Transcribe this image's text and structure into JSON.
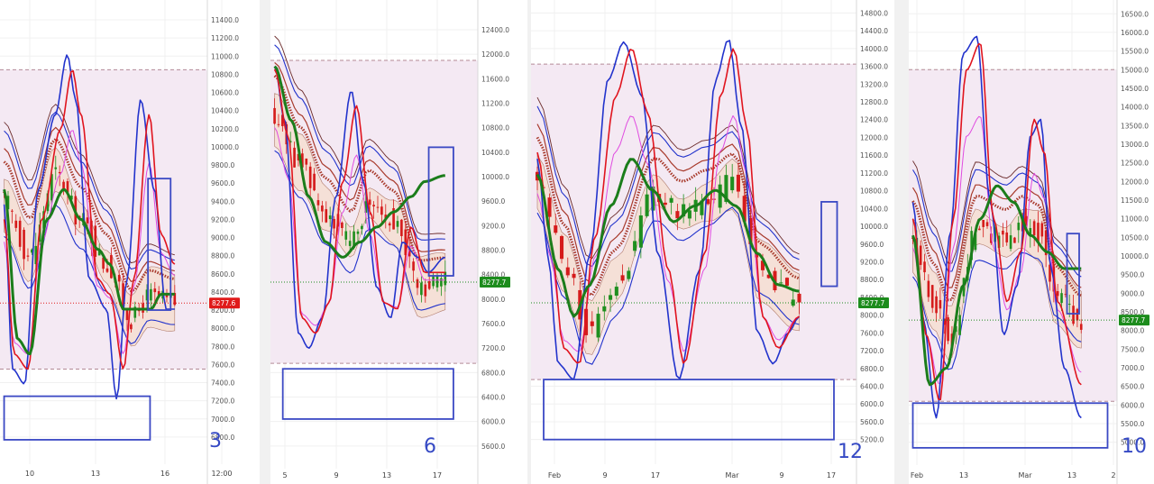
{
  "colors": {
    "zone_fill": "#f4e9f3",
    "zone_line": "#b38a96",
    "cloud_fill": "#f6dccd",
    "up_candle": "#1f8f1f",
    "down_candle": "#d51b1b",
    "osc_red": "#e0141e",
    "osc_blue": "#2233cc",
    "osc_green": "#1b7d1b",
    "osc_pink": "#e04be0",
    "ma_brown": "#a83a2c",
    "ma_dark": "#6b2b2b",
    "annot_blue": "#3b49c4",
    "badge_red": "#e01a1a",
    "badge_green": "#1c8c1c"
  },
  "chart_data": [
    {
      "type": "candlestick",
      "timeframe_mark": "3",
      "price_badge": "8277.6",
      "price_badge_color": "red",
      "y_ticks": [
        "11400.0",
        "11200.0",
        "11000.0",
        "10800.0",
        "10600.0",
        "10400.0",
        "10200.0",
        "10000.0",
        "9800.0",
        "9600.0",
        "9400.0",
        "9200.0",
        "9000.0",
        "8800.0",
        "8600.0",
        "8400.0",
        "8200.0",
        "8000.0",
        "7800.0",
        "7600.0",
        "7400.0",
        "7200.0",
        "7000.0",
        "6800.0"
      ],
      "x_ticks": [
        "10",
        "13",
        "16",
        "12:00"
      ],
      "ylim": [
        6650,
        11500
      ],
      "zone": [
        7550,
        10850
      ],
      "last_price": 8277.6,
      "highlight_boxes": [
        {
          "x0": 0.72,
          "x1": 0.83,
          "y0": 8200,
          "y1": 9650
        },
        {
          "x0": 0.02,
          "x1": 0.73,
          "y0": 6770,
          "y1": 7250
        }
      ]
    },
    {
      "type": "candlestick",
      "timeframe_mark": "6",
      "price_badge": "8277.7",
      "price_badge_color": "green",
      "y_ticks": [
        "12400.0",
        "12000.0",
        "11600.0",
        "11200.0",
        "10800.0",
        "10400.0",
        "10000.0",
        "9600.0",
        "9200.0",
        "8800.0",
        "8400.0",
        "8000.0",
        "7600.0",
        "7200.0",
        "6800.0",
        "6400.0",
        "6000.0",
        "5600.0"
      ],
      "x_ticks": [
        "5",
        "9",
        "13",
        "17"
      ],
      "ylim": [
        5450,
        12650
      ],
      "zone": [
        6950,
        11900
      ],
      "last_price": 8277.7,
      "highlight_boxes": [
        {
          "x0": 0.77,
          "x1": 0.89,
          "y0": 8380,
          "y1": 10480
        },
        {
          "x0": 0.06,
          "x1": 0.89,
          "y0": 6040,
          "y1": 6860
        }
      ]
    },
    {
      "type": "candlestick",
      "timeframe_mark": "12",
      "price_badge": "8277.7",
      "price_badge_color": "green",
      "y_ticks": [
        "14800.0",
        "14400.0",
        "14000.0",
        "13600.0",
        "13200.0",
        "12800.0",
        "12400.0",
        "12000.0",
        "11600.0",
        "11200.0",
        "10800.0",
        "10400.0",
        "10000.0",
        "9600.0",
        "9200.0",
        "8800.0",
        "8400.0",
        "8000.0",
        "7600.0",
        "7200.0",
        "6800.0",
        "6400.0",
        "6000.0",
        "5600.0",
        "5200.0"
      ],
      "x_ticks": [
        "Feb",
        "9",
        "17",
        "Mar",
        "9",
        "17"
      ],
      "ylim": [
        4950,
        14950
      ],
      "zone": [
        6550,
        13650
      ],
      "last_price": 8277.7,
      "highlight_boxes": [
        {
          "x0": 0.92,
          "x1": 0.97,
          "y0": 8650,
          "y1": 10550
        },
        {
          "x0": 0.04,
          "x1": 0.96,
          "y0": 5200,
          "y1": 6550
        }
      ]
    },
    {
      "type": "candlestick",
      "timeframe_mark": "10",
      "price_badge": "8277.7",
      "price_badge_color": "green",
      "y_ticks": [
        "16500.0",
        "16000.0",
        "15500.0",
        "15000.0",
        "14500.0",
        "14000.0",
        "13500.0",
        "13000.0",
        "12500.0",
        "12000.0",
        "11500.0",
        "11000.0",
        "10500.0",
        "10000.0",
        "9500.0",
        "9000.0",
        "8500.0",
        "8000.0",
        "7500.0",
        "7000.0",
        "6500.0",
        "6000.0",
        "5500.0",
        "5000.0"
      ],
      "x_ticks": [
        "Feb",
        "13",
        "Mar",
        "13",
        "2"
      ],
      "ylim": [
        4750,
        16700
      ],
      "zone": [
        6100,
        15000
      ],
      "last_price": 8277.7,
      "highlight_boxes": [
        {
          "x0": 0.78,
          "x1": 0.84,
          "y0": 8450,
          "y1": 10600
        },
        {
          "x0": 0.02,
          "x1": 0.98,
          "y0": 4850,
          "y1": 6050
        }
      ]
    }
  ]
}
